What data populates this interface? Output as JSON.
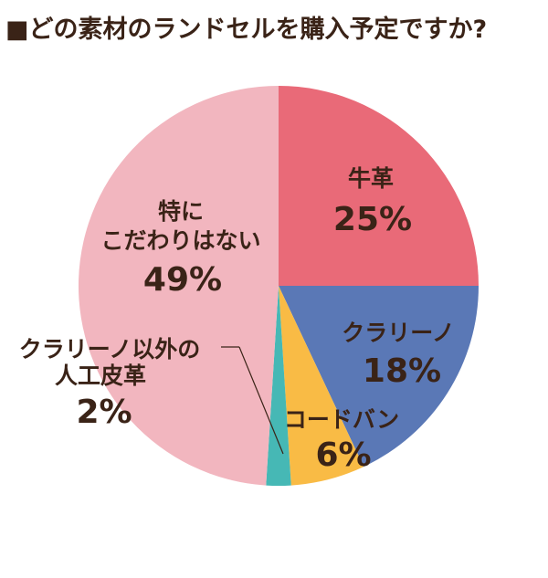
{
  "chart_data": {
    "type": "pie",
    "title": "■どの素材のランドセルを購入予定ですか?",
    "unit": "%",
    "slices": [
      {
        "name": "牛革",
        "value": 25,
        "label": "25%",
        "color": "#e96a78"
      },
      {
        "name": "クラリーノ",
        "value": 18,
        "label": "18%",
        "color": "#5a78b6"
      },
      {
        "name": "コードバン",
        "value": 6,
        "label": "6%",
        "color": "#f9bb45"
      },
      {
        "name": "クラリーノ以外の人工皮革",
        "value": 2,
        "label": "2%",
        "color": "#46b8b5"
      },
      {
        "name": "特にこだわりはない",
        "value": 49,
        "label": "49%",
        "color": "#f2b6bf"
      }
    ]
  }
}
